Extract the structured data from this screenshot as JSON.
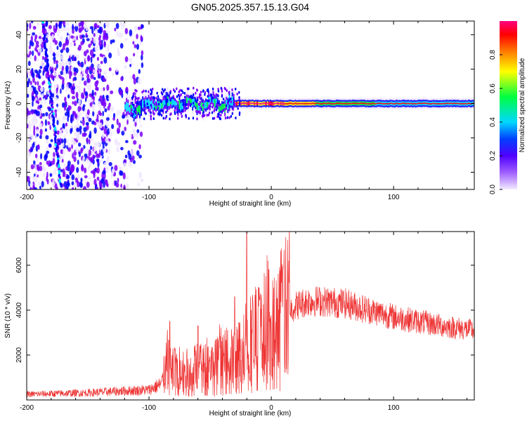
{
  "chart_data": [
    {
      "type": "heatmap",
      "title": "GN05.2025.357.15.13.G04",
      "xlabel": "Height of straight line (km)",
      "ylabel": "Frequency (Hz)",
      "xlim": [
        -200,
        166
      ],
      "ylim": [
        -50,
        48
      ],
      "xticks": [
        -200,
        -100,
        0,
        100
      ],
      "xtick_labels": [
        "-200",
        "-100",
        "0",
        "100"
      ],
      "yticks": [
        -40,
        -20,
        0,
        20,
        40
      ],
      "ytick_labels": [
        "-40",
        "-20",
        "0",
        "20",
        "40"
      ],
      "colorbar": {
        "label": "Normalized spectral amplitude",
        "range": [
          0,
          1
        ],
        "ticks": [
          0.0,
          0.2,
          0.4,
          0.6,
          0.8
        ],
        "tick_labels": [
          "0.0",
          "0.2",
          "0.4",
          "0.6",
          "0.8"
        ],
        "colors": [
          "#f0e6ff",
          "#7a00ff",
          "#0000ff",
          "#00e6ff",
          "#00ff40",
          "#ffff00",
          "#ff8000",
          "#ff0000",
          "#ff0080"
        ]
      },
      "features": {
        "diagonal_streak": {
          "x_start": -187,
          "y_start": 48,
          "x_end": -172,
          "y_end": -48
        },
        "noise_region_x": [
          -200,
          -105
        ],
        "signal_band_x": [
          -120,
          166
        ],
        "signal_band_center_hz": 0
      }
    },
    {
      "type": "line",
      "xlabel": "Height of straight line (km)",
      "ylabel": "SNR (10 * v/v)",
      "xlim": [
        -200,
        166
      ],
      "ylim": [
        0,
        7500
      ],
      "xticks": [
        -200,
        -100,
        0,
        100
      ],
      "xtick_labels": [
        "-200",
        "-100",
        "0",
        "100"
      ],
      "yticks": [
        2000,
        4000,
        6000
      ],
      "ytick_labels": [
        "2000",
        "4000",
        "6000"
      ],
      "series": [
        {
          "name": "SNR",
          "color": "#ee3333",
          "envelope_x": [
            -200,
            -150,
            -120,
            -100,
            -90,
            -85,
            -80,
            -70,
            -60,
            -50,
            -40,
            -30,
            -25,
            -20,
            -15,
            -10,
            -5,
            0,
            5,
            10,
            20,
            30,
            40,
            60,
            80,
            100,
            120,
            140,
            166
          ],
          "envelope_y": [
            250,
            320,
            400,
            450,
            700,
            1500,
            1300,
            1200,
            1300,
            1400,
            1600,
            1700,
            2000,
            2300,
            2600,
            2800,
            3000,
            3000,
            3400,
            3800,
            4200,
            4400,
            4400,
            4300,
            4000,
            3700,
            3500,
            3300,
            3100
          ],
          "spikes": [
            {
              "x": -83,
              "y": 3500
            },
            {
              "x": -60,
              "y": 3300
            },
            {
              "x": -45,
              "y": 2700
            },
            {
              "x": -30,
              "y": 4600
            },
            {
              "x": -20,
              "y": 7500
            },
            {
              "x": -10,
              "y": 5000
            },
            {
              "x": -2,
              "y": 5800
            },
            {
              "x": 10,
              "y": 5900
            }
          ]
        }
      ]
    }
  ]
}
